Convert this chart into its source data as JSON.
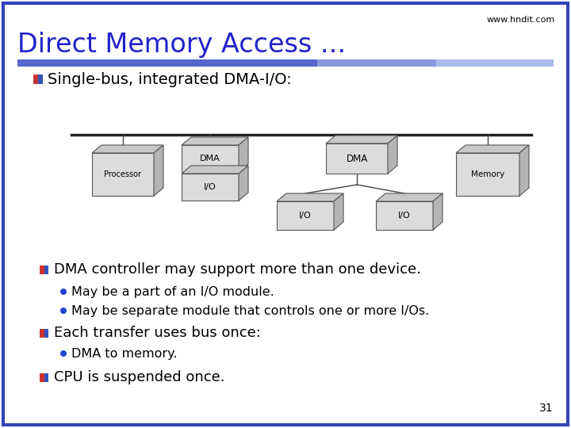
{
  "title": "Direct Memory Access ...",
  "website": "www.hndit.com",
  "title_color": "#2222CC",
  "bg_color": "#FFFFFF",
  "border_color": "#3344BB",
  "slide_number": "31",
  "bullet1_text": "Single-bus, integrated DMA-I/O:",
  "bullet2_text": "DMA controller may support more than one device.",
  "sub_bullet1": "May be a part of an I/O module.",
  "sub_bullet2": "May be separate module that controls one or more I/Os.",
  "bullet3_text": "Each transfer uses bus once:",
  "sub_bullet3": "DMA to memory.",
  "bullet4_text": "CPU is suspended once."
}
